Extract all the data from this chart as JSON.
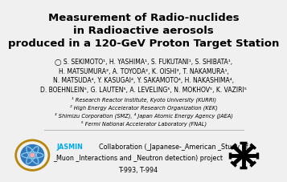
{
  "title_line1": "Measurement of Radio-nuclides",
  "title_line2": "in Radioactive aerosols",
  "title_line3": "produced in a 120-GeV Proton Target Station",
  "authors": "◯ S. SEKIMOTO¹, H. YASHIMA¹, S. FUKUTANI¹, S. SHIBATA¹,\nH. MATSUMURA², A. TOYODA², K. OISHI³, T. NAKAMURA¹,\nN. MATSUDA⁴, Y. KASUGAI⁴, Y. SAKAMOTO⁴, H. NAKASHIMA⁴,\nD. BOEHNLEIN⁵, G. LAUTEN⁵, A. LEVELING⁵, N. MOKHOV⁵, K. VAZIRI⁵",
  "affil1": "¹ Research Reactor Institute, Kyoto University (KURRI)",
  "affil2": "² High Energy Accelerator Research Organization (KEK)",
  "affil3": "³ Shimizu Corporation (SMZ), ⁴ Japan Atomic Energy Agency (JAEA)",
  "affil4": "⁵ Fermi National Accelerator Laboratory (FNAL)",
  "title_color": "#000000",
  "author_color": "#000000",
  "jasmin_color": "#00aaee",
  "bg_color": "#f0f0f0",
  "title_fontsize": 9.5,
  "author_fontsize": 5.5,
  "affil_fontsize": 4.8,
  "collab_fontsize": 5.8
}
